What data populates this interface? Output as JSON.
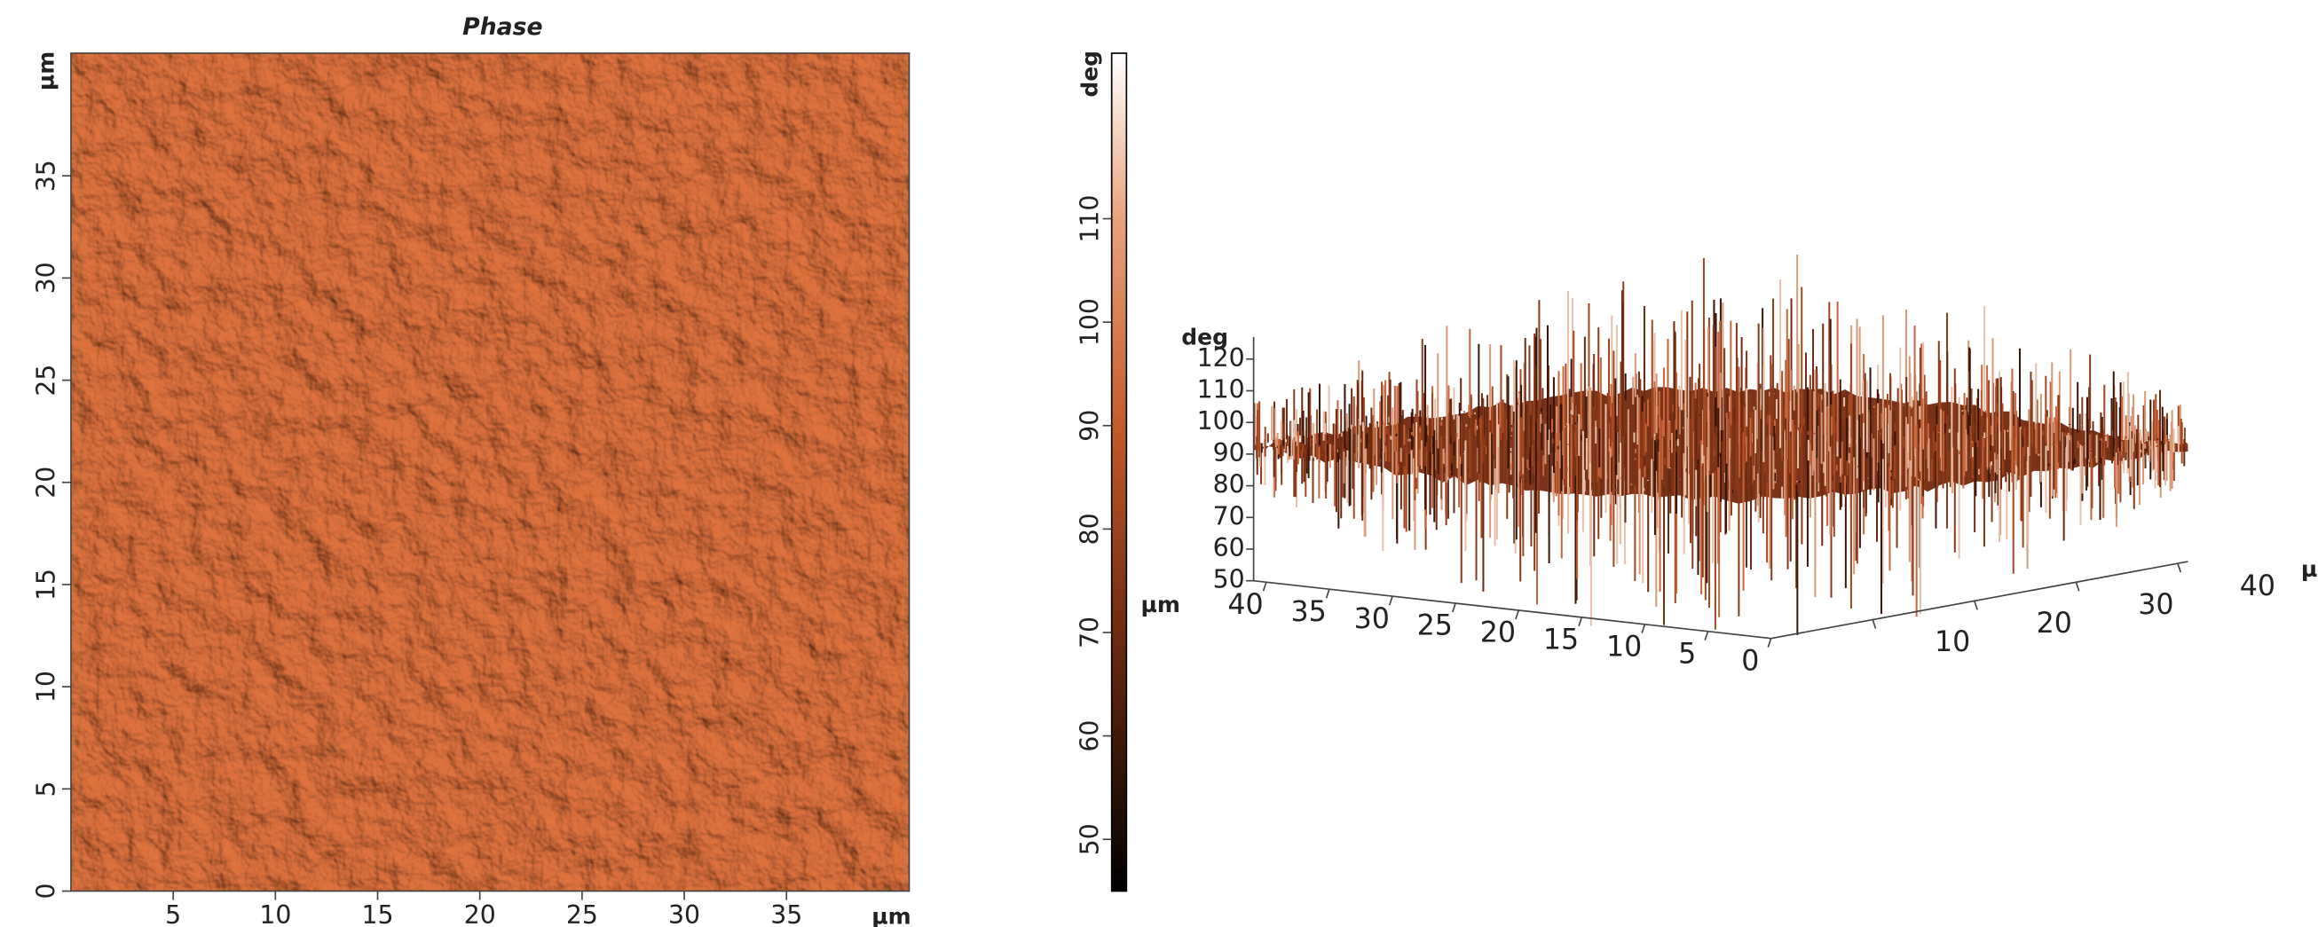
{
  "chart_data": [
    {
      "type": "image",
      "title": "Phase",
      "x_label": "µm",
      "y_label": "µm",
      "xlim": [
        0,
        41
      ],
      "ylim": [
        0,
        41
      ],
      "xticks": [
        5,
        10,
        15,
        20,
        25,
        30,
        35
      ],
      "yticks": [
        0,
        5,
        10,
        15,
        20,
        25,
        30,
        35
      ]
    },
    {
      "type": "colorbar",
      "label": "deg",
      "ylim": [
        45,
        126
      ],
      "yticks": [
        50,
        60,
        70,
        80,
        90,
        100,
        110
      ]
    },
    {
      "type": "surface3d",
      "z_label": "deg",
      "x_label": "µm",
      "y_label": "µ",
      "zlim": [
        50,
        127
      ],
      "zticks": [
        50,
        60,
        70,
        80,
        90,
        100,
        110,
        120
      ],
      "xlim": [
        41,
        0
      ],
      "xticks": [
        40,
        35,
        30,
        25,
        20,
        15,
        10,
        5,
        0
      ],
      "ylim": [
        0,
        41
      ],
      "yticks": [
        10,
        20,
        30,
        40
      ]
    }
  ]
}
